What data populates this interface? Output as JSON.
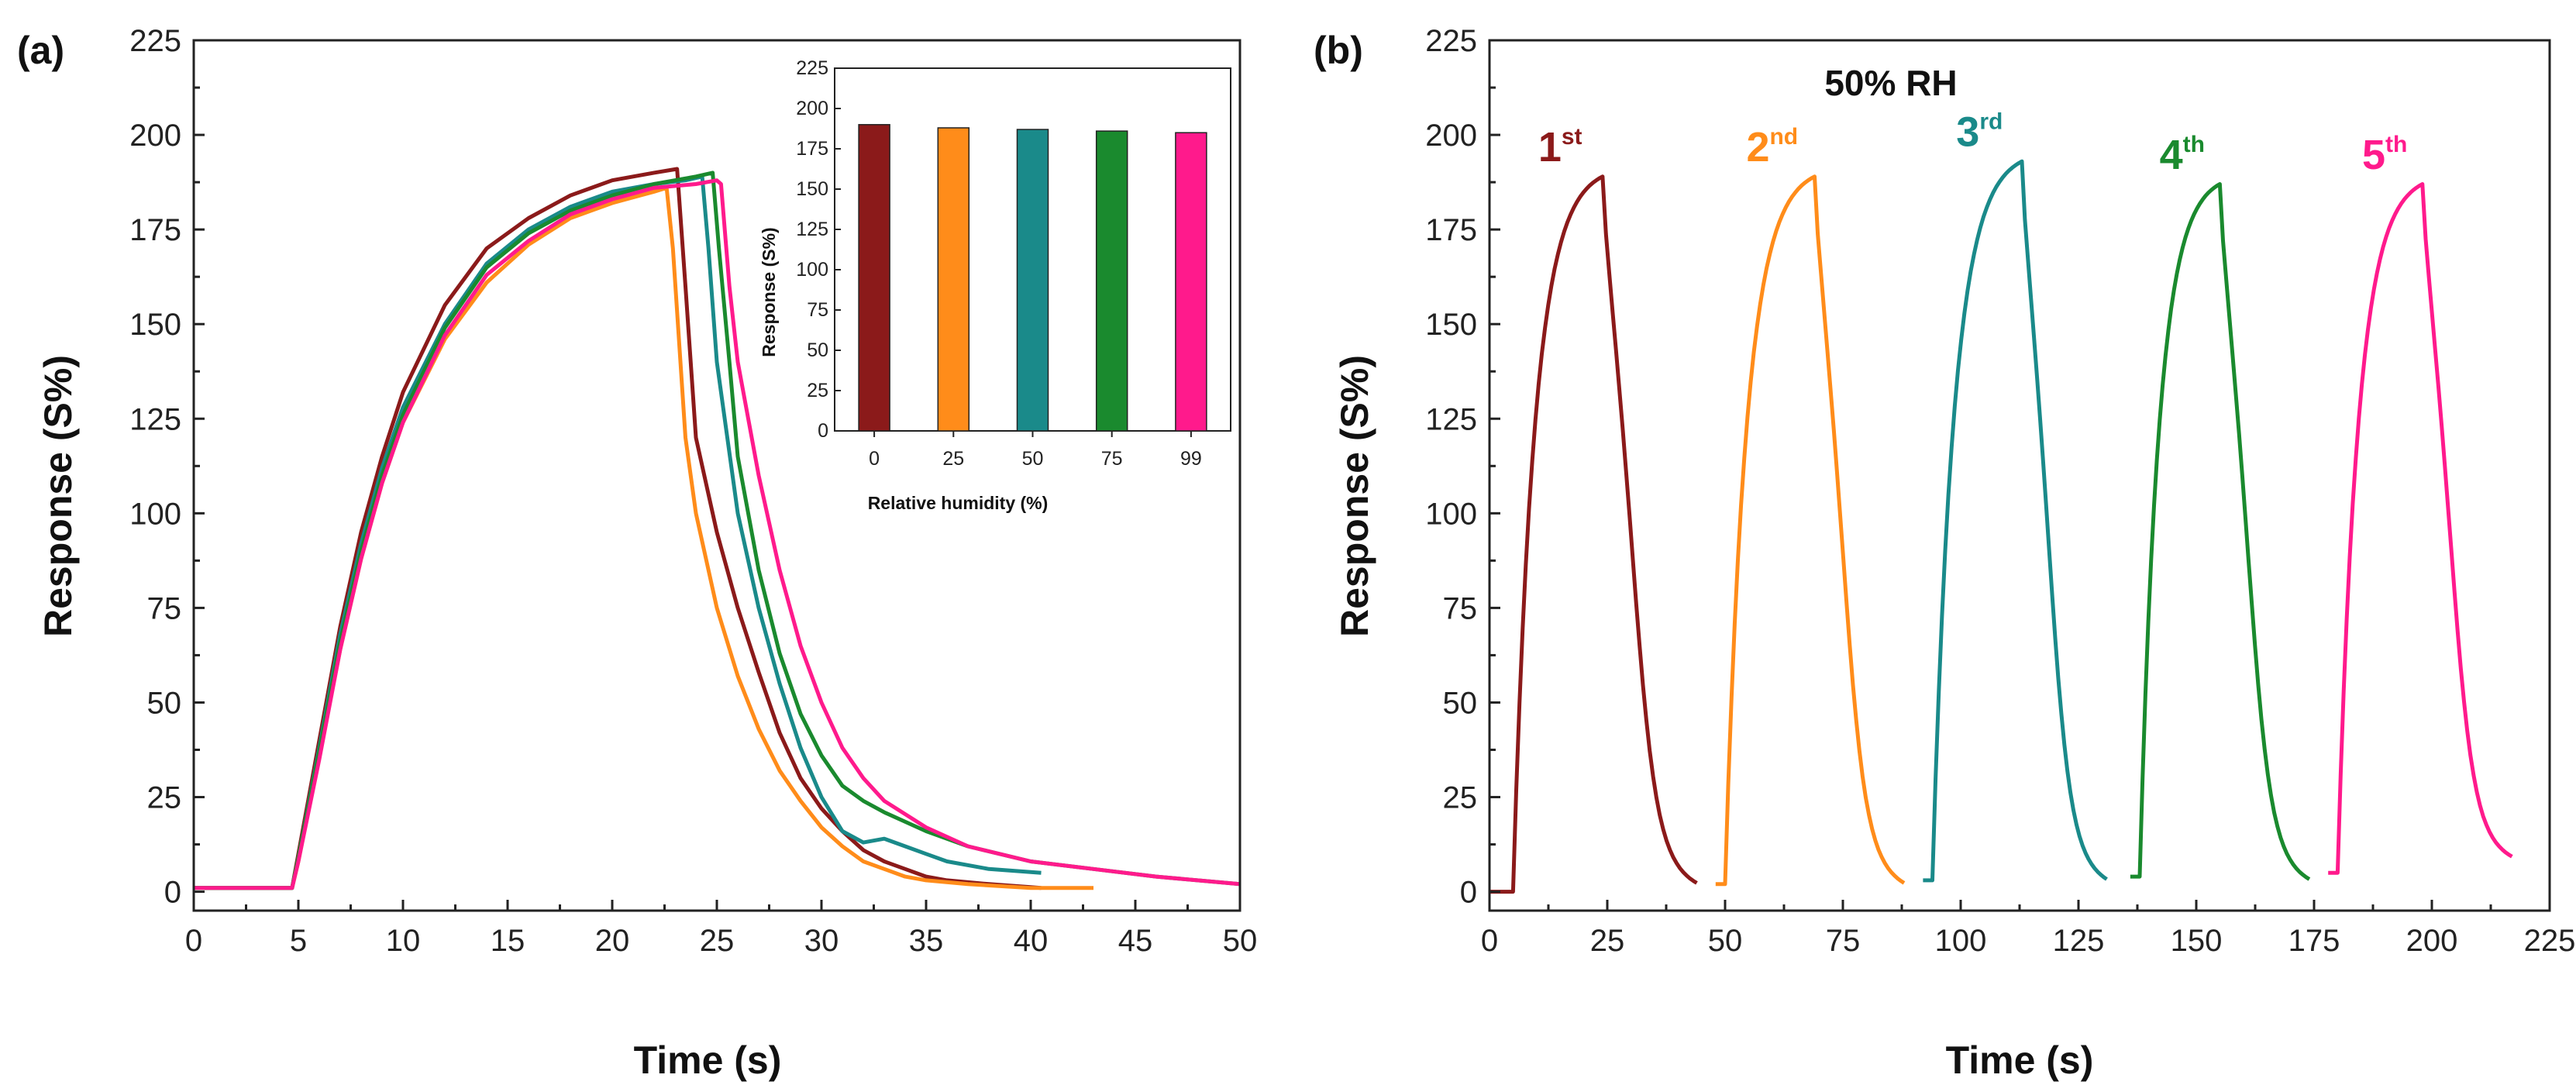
{
  "chart_data": [
    {
      "panel": "(a)",
      "type": "line",
      "title": "",
      "xlabel": "Time (s)",
      "ylabel": "Response (S%)",
      "xlim": [
        0,
        50
      ],
      "ylim": [
        -5,
        225
      ],
      "xticks": [
        0,
        5,
        10,
        15,
        20,
        25,
        30,
        35,
        40,
        45,
        50
      ],
      "yticks": [
        0,
        25,
        50,
        75,
        100,
        125,
        150,
        175,
        200,
        225
      ],
      "series": [
        {
          "name": "0",
          "color": "#8b1a1a",
          "x": [
            0,
            4.7,
            5,
            6,
            7,
            8,
            9,
            10,
            12,
            14,
            16,
            18,
            20,
            22,
            23.1,
            23.5,
            24,
            25,
            26,
            27,
            28,
            29,
            30,
            31,
            32,
            33,
            34,
            35,
            36,
            38,
            40.5
          ],
          "y": [
            1,
            1,
            10,
            40,
            70,
            95,
            115,
            132,
            155,
            170,
            178,
            184,
            188,
            190,
            191,
            160,
            120,
            95,
            75,
            58,
            42,
            30,
            22,
            16,
            11,
            8,
            6,
            4,
            3,
            2,
            1
          ]
        },
        {
          "name": "25",
          "color": "#ff8c1a",
          "x": [
            0,
            4.7,
            5,
            6,
            7,
            8,
            9,
            10,
            12,
            14,
            16,
            18,
            20,
            22,
            22.6,
            22.9,
            23.5,
            24,
            25,
            26,
            27,
            28,
            29,
            30,
            31,
            32,
            33,
            34,
            35,
            37,
            40,
            43
          ],
          "y": [
            1,
            1,
            8,
            36,
            64,
            88,
            108,
            124,
            146,
            161,
            171,
            178,
            182,
            185,
            186,
            170,
            120,
            100,
            75,
            57,
            43,
            32,
            24,
            17,
            12,
            8,
            6,
            4,
            3,
            2,
            1,
            1
          ]
        },
        {
          "name": "50",
          "color": "#1a8a8a",
          "x": [
            0,
            4.7,
            5,
            6,
            7,
            8,
            9,
            10,
            12,
            14,
            16,
            18,
            20,
            22,
            23.5,
            24.3,
            24.6,
            25,
            26,
            27,
            28,
            29,
            30,
            31,
            32,
            33,
            34,
            35,
            36,
            38,
            40.5
          ],
          "y": [
            1,
            1,
            9,
            38,
            68,
            92,
            112,
            128,
            150,
            166,
            175,
            181,
            185,
            187,
            188,
            189,
            170,
            140,
            100,
            75,
            55,
            38,
            25,
            16,
            13,
            14,
            12,
            10,
            8,
            6,
            5
          ]
        },
        {
          "name": "75",
          "color": "#1a8a2e",
          "x": [
            0,
            4.7,
            5,
            6,
            7,
            8,
            9,
            10,
            12,
            14,
            16,
            18,
            20,
            22,
            24,
            24.8,
            25.1,
            25.6,
            26,
            27,
            28,
            29,
            30,
            31,
            32,
            33,
            35,
            37,
            40,
            43,
            46,
            50
          ],
          "y": [
            1,
            1,
            9,
            37,
            66,
            90,
            110,
            126,
            149,
            165,
            174,
            180,
            184,
            187,
            189,
            190,
            170,
            140,
            115,
            85,
            63,
            47,
            36,
            28,
            24,
            21,
            16,
            12,
            8,
            6,
            4,
            2
          ]
        },
        {
          "name": "99",
          "color": "#ff1a8c",
          "x": [
            0,
            4.7,
            5,
            6,
            7,
            8,
            9,
            10,
            12,
            14,
            16,
            18,
            20,
            22,
            24,
            25,
            25.2,
            25.6,
            26,
            27,
            28,
            29,
            30,
            31,
            32,
            33,
            35,
            37,
            40,
            43,
            46,
            50
          ],
          "y": [
            1,
            1,
            8,
            35,
            64,
            88,
            108,
            124,
            147,
            163,
            172,
            179,
            183,
            186,
            187,
            188,
            187,
            160,
            140,
            110,
            85,
            65,
            50,
            38,
            30,
            24,
            17,
            12,
            8,
            6,
            4,
            2
          ]
        }
      ],
      "inset": {
        "type": "bar",
        "xlabel": "Relative humidity (%)",
        "ylabel": "Response (S%)",
        "ylim": [
          0,
          225
        ],
        "yticks": [
          0,
          25,
          50,
          75,
          100,
          125,
          150,
          175,
          200,
          225
        ],
        "categories": [
          "0",
          "25",
          "50",
          "75",
          "99"
        ],
        "values": [
          190,
          188,
          187,
          186,
          185
        ],
        "colors": [
          "#8b1a1a",
          "#ff8c1a",
          "#1a8a8a",
          "#1a8a2e",
          "#ff1a8c"
        ]
      }
    },
    {
      "panel": "(b)",
      "type": "line",
      "title": "50% RH",
      "xlabel": "Time (s)",
      "ylabel": "Response (S%)",
      "xlim": [
        0,
        225
      ],
      "ylim": [
        -5,
        225
      ],
      "xticks": [
        0,
        25,
        50,
        75,
        100,
        125,
        150,
        175,
        200,
        225
      ],
      "yticks": [
        0,
        25,
        50,
        75,
        100,
        125,
        150,
        175,
        200,
        225
      ],
      "cycles": [
        {
          "num": "1",
          "sup": "st",
          "color": "#8b1a1a",
          "base": 0,
          "start": 5,
          "peak_t": 24,
          "peak": 189,
          "end_t": 44,
          "end": 2,
          "label_x": 15,
          "label_y": 193
        },
        {
          "num": "2",
          "sup": "nd",
          "color": "#ff8c1a",
          "base": 2,
          "start": 50,
          "peak_t": 69,
          "peak": 189,
          "end_t": 88,
          "end": 2,
          "label_x": 60,
          "label_y": 193
        },
        {
          "num": "3",
          "sup": "rd",
          "color": "#1a8a8a",
          "base": 3,
          "start": 94,
          "peak_t": 113,
          "peak": 193,
          "end_t": 131,
          "end": 3,
          "label_x": 104,
          "label_y": 197
        },
        {
          "num": "4",
          "sup": "th",
          "color": "#1a8a2e",
          "base": 4,
          "start": 138,
          "peak_t": 155,
          "peak": 187,
          "end_t": 174,
          "end": 3,
          "label_x": 147,
          "label_y": 191
        },
        {
          "num": "5",
          "sup": "th",
          "color": "#ff1a8c",
          "base": 5,
          "start": 180,
          "peak_t": 198,
          "peak": 187,
          "end_t": 217,
          "end": 9,
          "label_x": 190,
          "label_y": 191
        }
      ]
    }
  ]
}
